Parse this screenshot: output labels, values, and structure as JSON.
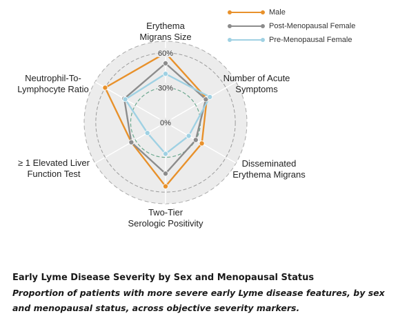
{
  "chart_data": {
    "type": "radar",
    "axes": [
      {
        "label": [
          "Erythema",
          "Migrans Size"
        ]
      },
      {
        "label": [
          "Number of Acute",
          "Symptoms"
        ]
      },
      {
        "label": [
          "Disseminated",
          "Erythema Migrans"
        ]
      },
      {
        "label": [
          "Two-Tier",
          "Serologic Positivity"
        ]
      },
      {
        "label": [
          "≥ 1 Elevated Liver",
          "Function Test"
        ]
      },
      {
        "label": [
          "Neutrophil-To-",
          "Lymphocyte Ratio"
        ]
      }
    ],
    "radial_ticks": [
      "0%",
      "30%",
      "60%"
    ],
    "rmax": 70,
    "series": [
      {
        "name": "Male",
        "color": "#E8912B",
        "values": [
          60,
          41,
          36,
          55,
          34,
          60
        ]
      },
      {
        "name": "Post-Menopausal Female",
        "color": "#8C8C8C",
        "values": [
          51,
          40,
          30,
          44,
          34,
          41
        ]
      },
      {
        "name": "Pre-Menopausal Female",
        "color": "#9FD1E3",
        "values": [
          42,
          44,
          23,
          27,
          18,
          40
        ]
      }
    ],
    "legend_position": "top-right"
  },
  "caption": {
    "title": "Early Lyme Disease Severity by Sex and Menopausal Status",
    "subtitle": "Proportion of patients with more severe early Lyme disease features, by sex and menopausal status, across objective severity markers."
  }
}
